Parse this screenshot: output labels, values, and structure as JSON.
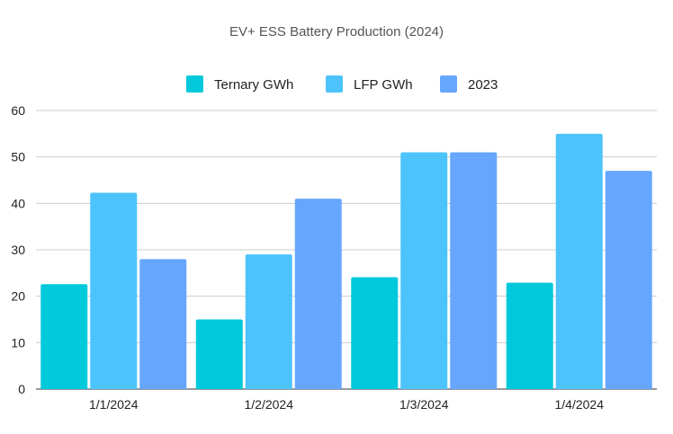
{
  "chart_data": {
    "type": "bar",
    "title": "EV+ ESS Battery Production (2024)",
    "xlabel": "",
    "ylabel": "",
    "categories": [
      "1/1/2024",
      "1/2/2024",
      "1/3/2024",
      "1/4/2024"
    ],
    "series": [
      {
        "name": "Ternary GWh",
        "color": "#00c9dc",
        "values": [
          22.6,
          15.0,
          24.1,
          22.9
        ]
      },
      {
        "name": "LFP GWh",
        "color": "#4cc3fb",
        "values": [
          42.3,
          29.0,
          51.0,
          55.0
        ]
      },
      {
        "name": "2023",
        "color": "#66a6fd",
        "values": [
          28.0,
          41.0,
          51.0,
          47.0
        ]
      }
    ],
    "ylim": [
      0,
      60
    ],
    "yticks": [
      0,
      10,
      20,
      30,
      40,
      50,
      60
    ],
    "grid": true,
    "legend_position": "top-center"
  }
}
